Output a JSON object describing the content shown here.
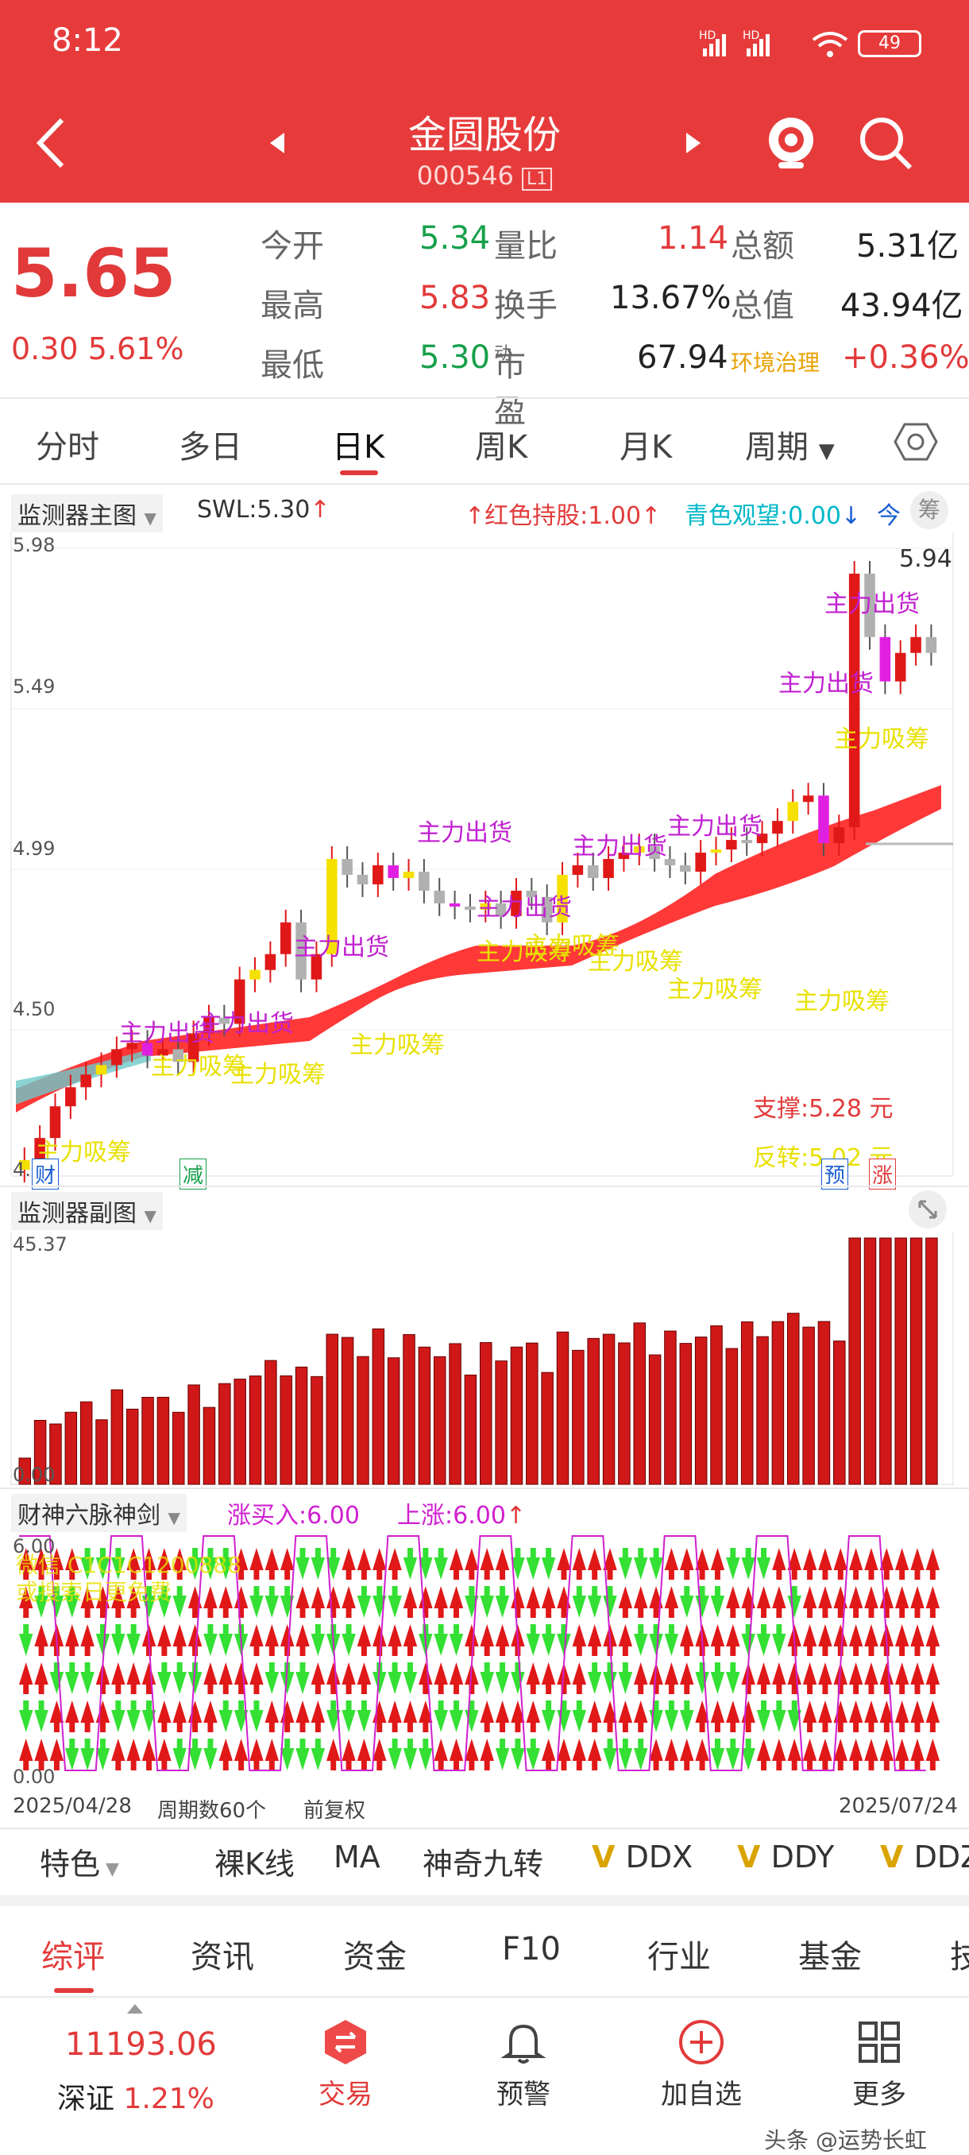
{
  "status": {
    "time": "8:12",
    "net1": "HD",
    "net2": "HD",
    "battery": "49"
  },
  "header": {
    "title": "金圆股份",
    "code": "000546",
    "level": "L1"
  },
  "quote": {
    "price": "5.65",
    "change": "0.30",
    "change_pct": "5.61%",
    "open_label": "今开",
    "open": "5.34",
    "high_label": "最高",
    "high": "5.83",
    "low_label": "最低",
    "low": "5.30",
    "vol_ratio_label": "量比",
    "vol_ratio": "1.14",
    "turnover_label": "换手",
    "turnover": "13.67%",
    "pe_label": "市盈",
    "pe_sup": "动",
    "pe": "67.94",
    "amount_label": "总额",
    "amount": "5.31亿",
    "mktcap_label": "总值",
    "mktcap": "43.94亿",
    "sector_label": "环境治理",
    "sector_change": "+0.36%"
  },
  "tabs": [
    "分时",
    "多日",
    "日K",
    "周K",
    "月K",
    "周期"
  ],
  "active_tab": "日K",
  "main_chart": {
    "label": "监测器主图",
    "swl": "SWL:5.30",
    "red_hold": "红色持股:1.00",
    "cyan_watch": "青色观望:0.00",
    "today": "今",
    "chip_btn": "筹",
    "y_labels": [
      "5.98",
      "5.49",
      "4.99",
      "4.50",
      "4.0"
    ],
    "max_label": "5.94",
    "support": "支撑:5.28 元",
    "reversal": "反转:5.02 元",
    "tag_cai": "财",
    "tag_jian": "减",
    "tag_yu": "预",
    "tag_zhang": "涨",
    "sell_label": "主力出货",
    "buy_label": "主力吸筹"
  },
  "sub_chart": {
    "label": "监测器副图",
    "y_top": "45.37",
    "y_bottom": "0.00"
  },
  "sword_chart": {
    "label": "财神六脉神剑",
    "buy": "涨买入:6.00",
    "rise": "上涨:6.00",
    "y_top": "6.00",
    "y_bottom": "0.00",
    "overlay1": "微信 C1C1C1200888",
    "overlay2": "或搜索日更免费",
    "date_start": "2025/04/28",
    "period": "周期数60个",
    "adjust": "前复权",
    "date_end": "2025/07/24"
  },
  "indicator_bar": [
    "特色",
    "裸K线",
    "MA",
    "神奇九转",
    "DDX",
    "DDY",
    "DDZ"
  ],
  "bottom_tabs": [
    "综评",
    "资讯",
    "资金",
    "F10",
    "行业",
    "基金",
    "技"
  ],
  "nav": {
    "index_value": "11193.06",
    "index_name": "深证",
    "index_pct": "1.21%",
    "trade": "交易",
    "alert": "预警",
    "add": "加自选",
    "more": "更多"
  },
  "watermark": "头条 @运势长虹",
  "colors": {
    "brand": "#e73b3b",
    "up": "#e01818",
    "down": "#17a04b",
    "yellow": "#f5e000",
    "magenta": "#d020d0"
  },
  "chart_data": {
    "type": "bar",
    "title": "金圆股份 日K",
    "y_range": [
      4.0,
      5.98
    ],
    "candles_close_approx": [
      4.05,
      4.12,
      4.22,
      4.28,
      4.32,
      4.35,
      4.4,
      4.42,
      4.38,
      4.4,
      4.36,
      4.45,
      4.5,
      4.48,
      4.62,
      4.65,
      4.7,
      4.8,
      4.62,
      4.7,
      5.0,
      4.95,
      4.92,
      4.98,
      4.94,
      4.96,
      4.9,
      4.86,
      4.85,
      4.84,
      4.86,
      4.82,
      4.9,
      4.88,
      4.8,
      4.95,
      4.98,
      4.94,
      5.0,
      5.02,
      5.04,
      5.0,
      4.98,
      4.96,
      5.02,
      5.03,
      5.06,
      5.05,
      5.08,
      5.12,
      5.18,
      5.2,
      5.05,
      5.1,
      5.9,
      5.7,
      5.56,
      5.65,
      5.7,
      5.65
    ],
    "sub_volume_max": 45.37
  }
}
